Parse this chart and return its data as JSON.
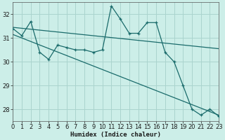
{
  "xlabel": "Humidex (Indice chaleur)",
  "bg_color": "#cceee8",
  "grid_color": "#aad4ce",
  "line_color": "#1a6b6b",
  "x": [
    0,
    1,
    2,
    3,
    4,
    5,
    6,
    7,
    8,
    9,
    10,
    11,
    12,
    13,
    14,
    15,
    16,
    17,
    18,
    19,
    20,
    21,
    22,
    23
  ],
  "series1": [
    31.4,
    31.1,
    31.7,
    30.4,
    30.1,
    30.7,
    30.6,
    30.5,
    30.5,
    30.4,
    30.5,
    32.35,
    31.8,
    31.2,
    31.2,
    31.65,
    31.65,
    30.4,
    30.0,
    29.0,
    28.0,
    27.75,
    28.0,
    27.7
  ],
  "trend1_x": [
    0,
    23
  ],
  "trend1_y": [
    31.45,
    30.55
  ],
  "trend2_x": [
    0,
    23
  ],
  "trend2_y": [
    31.15,
    27.75
  ],
  "xlim": [
    0,
    23
  ],
  "ylim": [
    27.5,
    32.5
  ],
  "yticks": [
    28,
    29,
    30,
    31,
    32
  ],
  "xtick_labels": [
    "0",
    "1",
    "2",
    "3",
    "4",
    "5",
    "6",
    "7",
    "8",
    "9",
    "10",
    "11",
    "12",
    "13",
    "14",
    "15",
    "16",
    "17",
    "18",
    "19",
    "20",
    "21",
    "22",
    "23"
  ]
}
